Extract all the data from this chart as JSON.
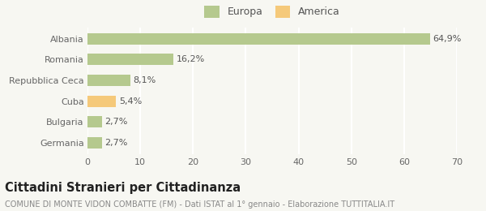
{
  "categories": [
    "Germania",
    "Bulgaria",
    "Cuba",
    "Repubblica Ceca",
    "Romania",
    "Albania"
  ],
  "values": [
    2.7,
    2.7,
    5.4,
    8.1,
    16.2,
    64.9
  ],
  "labels": [
    "2,7%",
    "2,7%",
    "5,4%",
    "8,1%",
    "16,2%",
    "64,9%"
  ],
  "bar_colors": [
    "#b5c98e",
    "#b5c98e",
    "#f5c97a",
    "#b5c98e",
    "#b5c98e",
    "#b5c98e"
  ],
  "legend_items": [
    {
      "label": "Europa",
      "color": "#b5c98e"
    },
    {
      "label": "America",
      "color": "#f5c97a"
    }
  ],
  "xlim": [
    0,
    70
  ],
  "xticks": [
    0,
    10,
    20,
    30,
    40,
    50,
    60,
    70
  ],
  "title": "Cittadini Stranieri per Cittadinanza",
  "subtitle": "COMUNE DI MONTE VIDON COMBATTE (FM) - Dati ISTAT al 1° gennaio - Elaborazione TUTTITALIA.IT",
  "background_color": "#f7f7f2",
  "grid_color": "#ffffff",
  "bar_label_fontsize": 8,
  "axis_label_fontsize": 8,
  "title_fontsize": 10.5,
  "subtitle_fontsize": 7
}
